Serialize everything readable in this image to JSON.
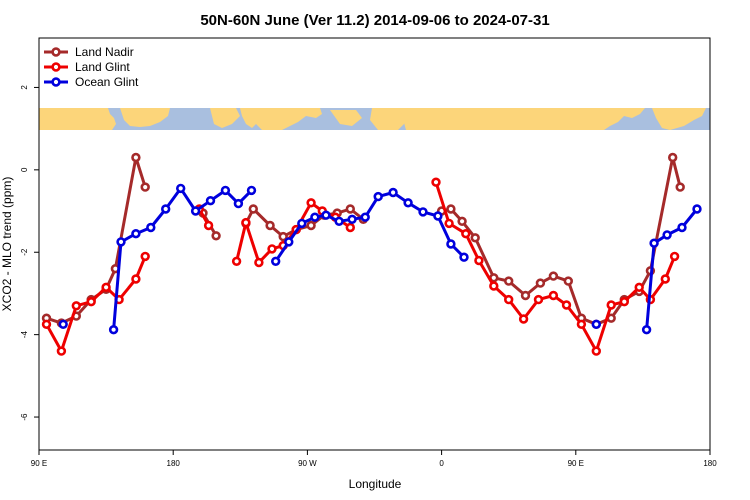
{
  "chart_data": {
    "type": "line",
    "title": "50N-60N June (Ver 11.2)   2014-09-06 to 2024-07-31",
    "xlabel": "Longitude",
    "ylabel": "XCO2 - MLO trend (ppm)",
    "xlim": [
      90,
      450
    ],
    "ylim": [
      -6.8,
      3.2
    ],
    "x_ticks": [
      {
        "value": 90,
        "label": "90 E"
      },
      {
        "value": 162,
        "label": "180"
      },
      {
        "value": 234,
        "label": "90 W"
      },
      {
        "value": 306,
        "label": "0"
      },
      {
        "value": 378,
        "label": "90 E"
      },
      {
        "value": 450,
        "label": "180"
      }
    ],
    "y_ticks": [
      {
        "value": -6,
        "label": "-6"
      },
      {
        "value": -4,
        "label": "-4"
      },
      {
        "value": -2,
        "label": "-2"
      },
      {
        "value": 0,
        "label": "0"
      },
      {
        "value": 2,
        "label": "2"
      }
    ],
    "map_band": {
      "y_range": [
        1.0,
        1.55
      ],
      "ocean_color": "#a9bfdf",
      "land_color": "#fcd57a"
    },
    "legend_position": "top-left",
    "series": [
      {
        "name": "Land Nadir",
        "color": "#a52a2a",
        "segments": [
          [
            [
              94,
              -3.6
            ],
            [
              102,
              -3.72
            ],
            [
              110,
              -3.55
            ],
            [
              118,
              -3.15
            ],
            [
              126,
              -2.9
            ],
            [
              131,
              -2.4
            ],
            [
              142,
              0.3
            ],
            [
              147,
              -0.42
            ]
          ],
          [
            [
              178,
              -1.05
            ],
            [
              185,
              -1.6
            ]
          ],
          [
            [
              201,
              -1.3
            ],
            [
              205,
              -0.95
            ],
            [
              214,
              -1.35
            ],
            [
              221,
              -1.62
            ],
            [
              228,
              -1.45
            ],
            [
              236,
              -1.35
            ],
            [
              243,
              -1.1
            ],
            [
              250,
              -1.05
            ],
            [
              257,
              -0.95
            ],
            [
              264,
              -1.2
            ]
          ],
          [
            [
              306,
              -1.0
            ],
            [
              311,
              -0.95
            ],
            [
              317,
              -1.25
            ],
            [
              324,
              -1.65
            ],
            [
              334,
              -2.62
            ],
            [
              342,
              -2.7
            ],
            [
              351,
              -3.05
            ],
            [
              359,
              -2.75
            ],
            [
              366,
              -2.58
            ],
            [
              374,
              -2.7
            ],
            [
              381,
              -3.6
            ],
            [
              389,
              -3.75
            ],
            [
              397,
              -3.6
            ],
            [
              404,
              -3.15
            ],
            [
              412,
              -2.95
            ],
            [
              418,
              -2.45
            ],
            [
              430,
              0.3
            ],
            [
              434,
              -0.42
            ]
          ]
        ]
      },
      {
        "name": "Land Glint",
        "color": "#ee0000",
        "segments": [
          [
            [
              94,
              -3.75
            ],
            [
              102,
              -4.4
            ],
            [
              110,
              -3.3
            ],
            [
              118,
              -3.2
            ],
            [
              126,
              -2.85
            ],
            [
              133,
              -3.15
            ],
            [
              142,
              -2.65
            ],
            [
              147,
              -2.1
            ]
          ],
          [
            [
              176,
              -0.95
            ],
            [
              181,
              -1.35
            ]
          ],
          [
            [
              196,
              -2.22
            ],
            [
              201,
              -1.28
            ],
            [
              208,
              -2.25
            ],
            [
              215,
              -1.92
            ],
            [
              221,
              -1.84
            ],
            [
              228,
              -1.45
            ],
            [
              236,
              -0.8
            ],
            [
              242,
              -1.0
            ],
            [
              249,
              -1.15
            ],
            [
              257,
              -1.4
            ]
          ],
          [
            [
              303,
              -0.3
            ],
            [
              310,
              -1.3
            ],
            [
              319,
              -1.55
            ],
            [
              326,
              -2.2
            ],
            [
              334,
              -2.82
            ],
            [
              342,
              -3.15
            ],
            [
              350,
              -3.62
            ],
            [
              358,
              -3.15
            ],
            [
              366,
              -3.05
            ],
            [
              373,
              -3.28
            ],
            [
              381,
              -3.75
            ],
            [
              389,
              -4.4
            ],
            [
              397,
              -3.28
            ],
            [
              404,
              -3.2
            ],
            [
              412,
              -2.85
            ],
            [
              418,
              -3.15
            ],
            [
              426,
              -2.65
            ],
            [
              431,
              -2.1
            ]
          ]
        ]
      },
      {
        "name": "Ocean Glint",
        "color": "#0000dd",
        "segments": [
          [
            [
              103,
              -3.75
            ]
          ],
          [
            [
              130,
              -3.88
            ],
            [
              134,
              -1.75
            ],
            [
              142,
              -1.55
            ],
            [
              150,
              -1.4
            ],
            [
              158,
              -0.95
            ],
            [
              166,
              -0.45
            ],
            [
              174,
              -1.0
            ],
            [
              182,
              -0.75
            ],
            [
              190,
              -0.5
            ],
            [
              197,
              -0.82
            ],
            [
              204,
              -0.5
            ]
          ],
          [
            [
              217,
              -2.22
            ],
            [
              224,
              -1.75
            ],
            [
              231,
              -1.3
            ],
            [
              238,
              -1.15
            ],
            [
              244,
              -1.1
            ],
            [
              251,
              -1.25
            ],
            [
              258,
              -1.2
            ],
            [
              265,
              -1.15
            ],
            [
              272,
              -0.65
            ],
            [
              280,
              -0.55
            ],
            [
              288,
              -0.8
            ],
            [
              296,
              -1.02
            ],
            [
              304,
              -1.12
            ],
            [
              311,
              -1.8
            ],
            [
              318,
              -2.12
            ]
          ],
          [
            [
              389,
              -3.75
            ]
          ],
          [
            [
              416,
              -3.88
            ],
            [
              420,
              -1.78
            ],
            [
              427,
              -1.58
            ],
            [
              435,
              -1.4
            ],
            [
              443,
              -0.95
            ]
          ]
        ]
      }
    ]
  }
}
